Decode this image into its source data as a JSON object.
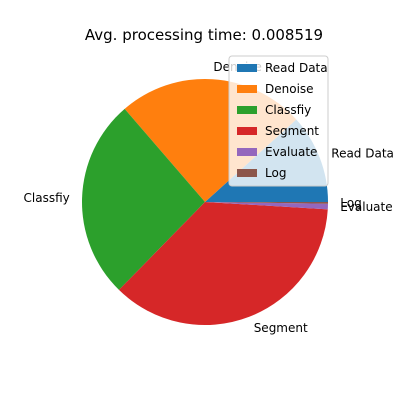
{
  "chart_data": {
    "type": "pie",
    "title": "Avg. processing time: 0.008519",
    "categories": [
      "Read Data",
      "Denoise",
      "Classfiy",
      "Segment",
      "Evaluate",
      "Log"
    ],
    "values": [
      0.000996,
      0.002099,
      0.002244,
      0.003099,
      6.2e-05,
      1.9e-05
    ],
    "colors": [
      "#1f77b4",
      "#ff7f0e",
      "#2ca02c",
      "#d62728",
      "#9467bd",
      "#8c564b"
    ],
    "legend": {
      "entries": [
        "Read Data",
        "Denoise",
        "Classfiy",
        "Segment",
        "Evaluate",
        "Log"
      ],
      "placement": "upper-right"
    }
  }
}
